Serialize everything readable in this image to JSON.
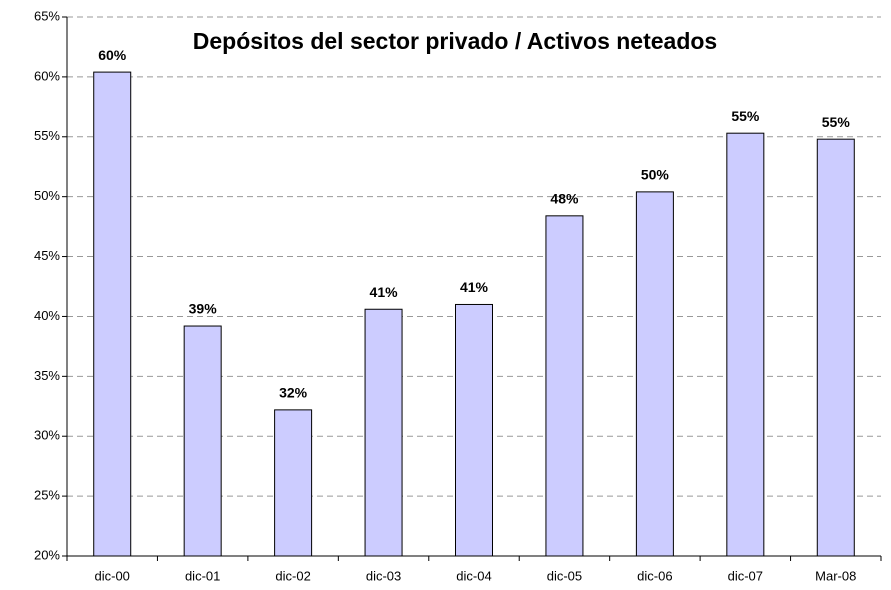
{
  "chart_data": {
    "type": "bar",
    "title": "Depósitos del sector privado / Activos neteados",
    "categories": [
      "dic-00",
      "dic-01",
      "dic-02",
      "dic-03",
      "dic-04",
      "dic-05",
      "dic-06",
      "dic-07",
      "Mar-08"
    ],
    "values": [
      60.4,
      39.2,
      32.2,
      40.6,
      41.0,
      48.4,
      50.4,
      55.3,
      54.8
    ],
    "value_labels": [
      "60%",
      "39%",
      "32%",
      "41%",
      "41%",
      "48%",
      "50%",
      "55%",
      "55%"
    ],
    "color": "#ccccff",
    "ylim": [
      20,
      65
    ],
    "yticks": [
      {
        "value": 20,
        "label": "20%"
      },
      {
        "value": 25,
        "label": "25%"
      },
      {
        "value": 30,
        "label": "30%"
      },
      {
        "value": 35,
        "label": "35%"
      },
      {
        "value": 40,
        "label": "40%"
      },
      {
        "value": 45,
        "label": "45%"
      },
      {
        "value": 50,
        "label": "50%"
      },
      {
        "value": 55,
        "label": "55%"
      },
      {
        "value": 60,
        "label": "60%"
      },
      {
        "value": 65,
        "label": "65%"
      }
    ],
    "grid": true
  }
}
